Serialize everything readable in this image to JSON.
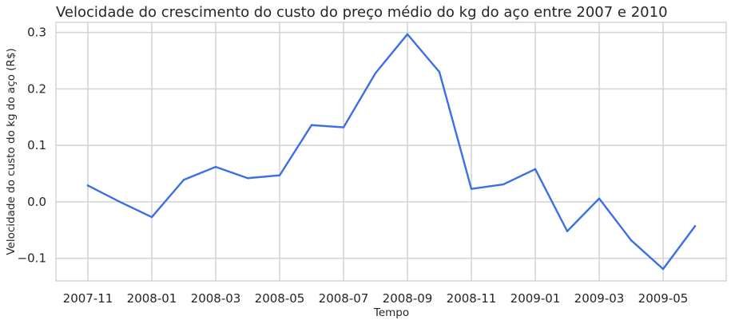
{
  "chart_data": {
    "type": "line",
    "title": "Velocidade do crescimento do custo do preço médio do kg do aço entre 2007 e 2010",
    "xlabel": "Tempo",
    "ylabel": "Velocidade do custo do kg do aço (R$)",
    "x": [
      "2007-11",
      "2007-12",
      "2008-01",
      "2008-02",
      "2008-03",
      "2008-04",
      "2008-05",
      "2008-06",
      "2008-07",
      "2008-08",
      "2008-09",
      "2008-10",
      "2008-11",
      "2008-12",
      "2009-01",
      "2009-02",
      "2009-03",
      "2009-04",
      "2009-05",
      "2009-06"
    ],
    "series": [
      {
        "values": [
          0.029,
          0.0,
          -0.027,
          0.039,
          0.062,
          0.042,
          0.047,
          0.136,
          0.132,
          0.228,
          0.297,
          0.23,
          0.023,
          0.031,
          0.058,
          -0.052,
          0.006,
          -0.068,
          -0.119,
          -0.043
        ]
      }
    ],
    "x_ticks": [
      "2007-11",
      "2008-01",
      "2008-03",
      "2008-05",
      "2008-07",
      "2008-09",
      "2008-11",
      "2009-01",
      "2009-03",
      "2009-05"
    ],
    "y_ticks": [
      -0.1,
      0.0,
      0.1,
      0.2,
      0.3
    ],
    "y_tick_labels": [
      "−0.1",
      "0.0",
      "0.1",
      "0.2",
      "0.3"
    ],
    "ylim": [
      -0.14,
      0.318
    ],
    "grid": true,
    "line_color": "#3a6fe8"
  }
}
